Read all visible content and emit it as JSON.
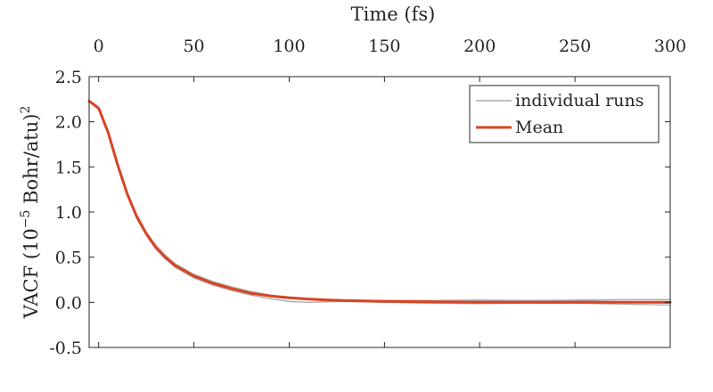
{
  "chart_data": {
    "type": "line",
    "title": "",
    "xlabel": "Time (fs)",
    "ylabel_main": "VACF (10",
    "ylabel_exp": "−5",
    "ylabel_tail": " Bohr/atu)",
    "ylabel_sq": "2",
    "x_axis_position": "top",
    "xlim": [
      -5,
      300
    ],
    "ylim": [
      -0.5,
      2.5
    ],
    "x_ticks": [
      0,
      50,
      100,
      150,
      200,
      250,
      300
    ],
    "x_tick_labels": [
      "0",
      "50",
      "100",
      "150",
      "200",
      "250",
      "300"
    ],
    "y_ticks": [
      -0.5,
      0,
      0.5,
      1,
      1.5,
      2,
      2.5
    ],
    "y_tick_labels": [
      "-0.5",
      "0.0",
      "0.5",
      "1.0",
      "1.5",
      "2.0",
      "2.5"
    ],
    "grid": false,
    "legend": {
      "placement": "top-right",
      "entries": [
        "individual runs",
        "Mean"
      ]
    },
    "colors": {
      "individual": "#aaaaaa",
      "mean": "#d94423",
      "axis": "#262626"
    },
    "series": [
      {
        "name": "Mean",
        "role": "mean",
        "x": [
          -5,
          0,
          5,
          10,
          15,
          20,
          25,
          30,
          35,
          40,
          50,
          60,
          70,
          80,
          90,
          100,
          110,
          120,
          130,
          150,
          175,
          200,
          225,
          250,
          275,
          300
        ],
        "y": [
          2.23,
          2.15,
          1.88,
          1.52,
          1.2,
          0.95,
          0.76,
          0.61,
          0.5,
          0.41,
          0.29,
          0.21,
          0.15,
          0.1,
          0.07,
          0.05,
          0.035,
          0.025,
          0.018,
          0.01,
          0.005,
          0.0,
          0.0,
          0.0,
          0.0,
          0.0
        ]
      },
      {
        "name": "individual runs",
        "role": "individual",
        "x": [
          -5,
          0,
          5,
          10,
          15,
          20,
          25,
          30,
          35,
          40,
          50,
          60,
          70,
          80,
          90,
          100,
          110,
          120,
          130,
          150,
          175,
          200,
          225,
          250,
          275,
          300
        ],
        "y": [
          2.24,
          2.16,
          1.9,
          1.54,
          1.22,
          0.97,
          0.78,
          0.63,
          0.52,
          0.43,
          0.31,
          0.23,
          0.17,
          0.12,
          0.08,
          0.06,
          0.045,
          0.035,
          0.028,
          0.02,
          0.02,
          0.025,
          0.02,
          0.025,
          0.03,
          0.03
        ]
      },
      {
        "name": "individual runs",
        "role": "individual",
        "x": [
          -5,
          0,
          5,
          10,
          15,
          20,
          25,
          30,
          35,
          40,
          50,
          60,
          70,
          80,
          90,
          100,
          110,
          120,
          130,
          150,
          175,
          200,
          225,
          250,
          275,
          300
        ],
        "y": [
          2.22,
          2.14,
          1.86,
          1.5,
          1.18,
          0.93,
          0.74,
          0.59,
          0.48,
          0.39,
          0.27,
          0.19,
          0.13,
          0.08,
          0.04,
          0.01,
          0.0,
          0.005,
          0.01,
          0.0,
          -0.01,
          -0.015,
          -0.01,
          -0.01,
          -0.02,
          -0.03
        ]
      },
      {
        "name": "individual runs",
        "role": "individual",
        "x": [
          -5,
          0,
          5,
          10,
          15,
          20,
          25,
          30,
          35,
          40,
          50,
          60,
          70,
          80,
          90,
          100,
          110,
          120,
          130,
          150,
          175,
          200,
          225,
          250,
          275,
          300
        ],
        "y": [
          2.23,
          2.15,
          1.87,
          1.52,
          1.2,
          0.95,
          0.76,
          0.61,
          0.5,
          0.41,
          0.29,
          0.21,
          0.15,
          0.1,
          0.07,
          0.05,
          0.03,
          0.02,
          0.015,
          0.005,
          0.005,
          0.01,
          0.015,
          0.02,
          0.005,
          -0.01
        ]
      }
    ]
  }
}
